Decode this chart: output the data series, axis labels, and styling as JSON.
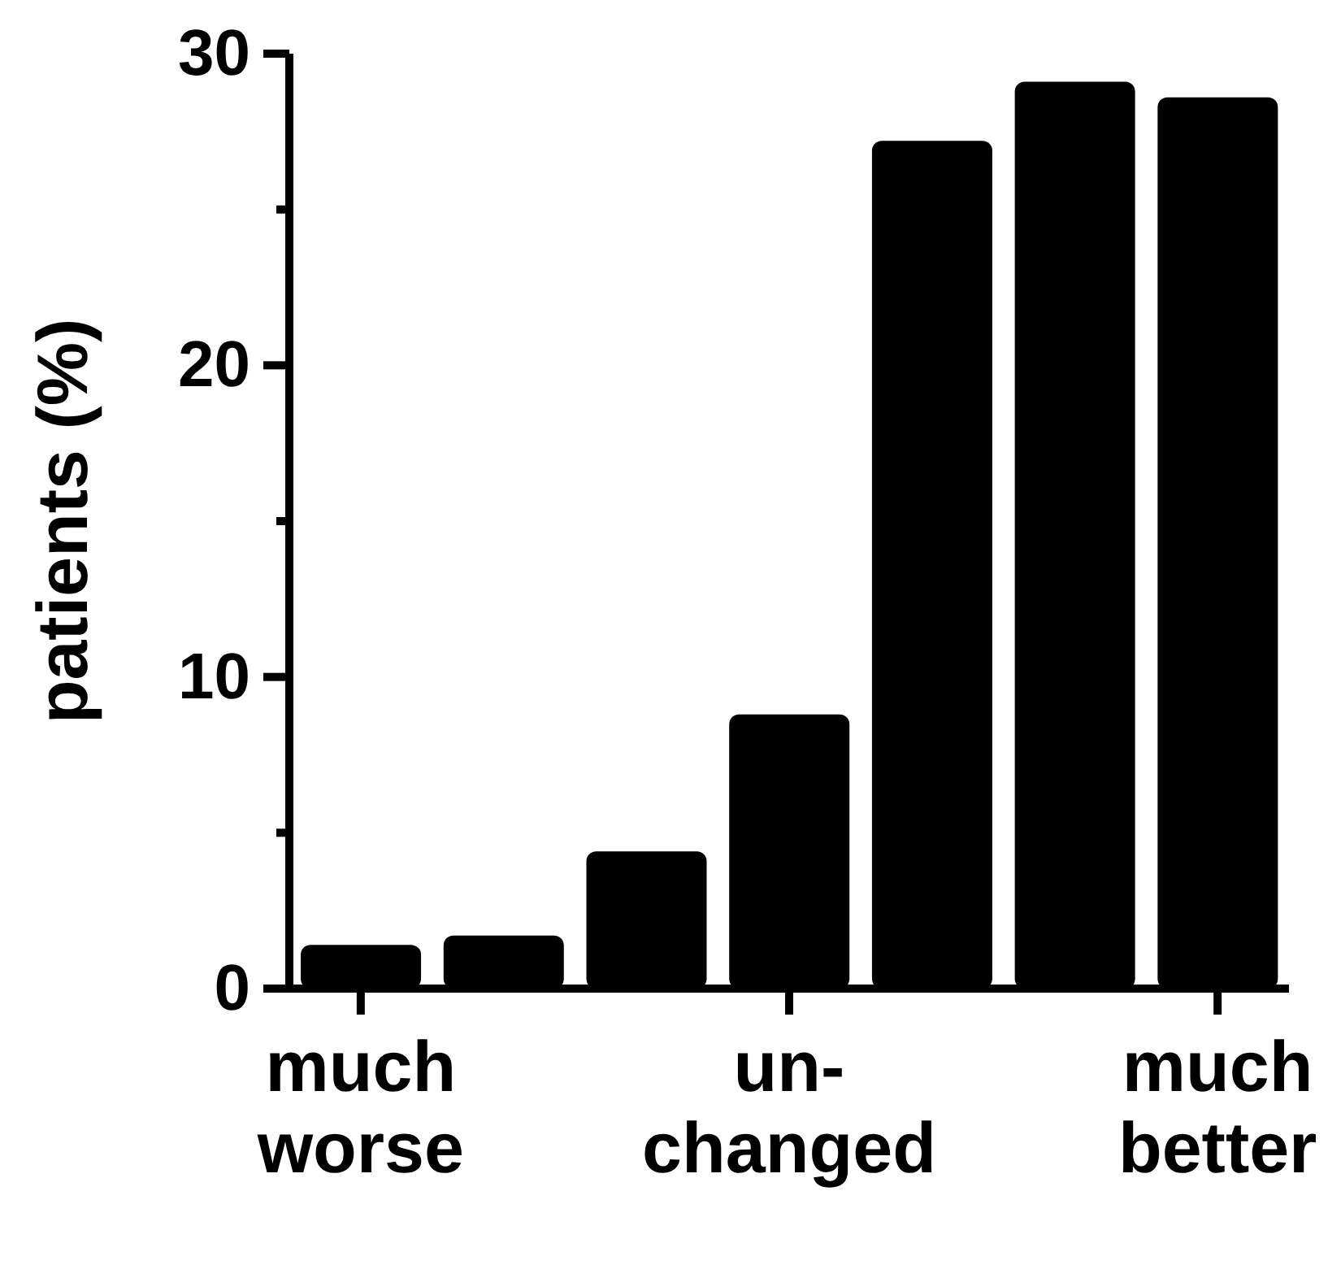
{
  "chart_data": {
    "type": "bar",
    "ylabel": "patients (%)",
    "categories": [
      "much\nworse",
      null,
      null,
      "un-\nchanged",
      null,
      null,
      "much\nbetter"
    ],
    "values": [
      1.4,
      1.7,
      4.4,
      8.8,
      27.2,
      29.1,
      28.6
    ],
    "color": "#000000",
    "ylim": [
      0,
      30
    ],
    "yticks": [
      0,
      {
        "value": 5,
        "label": null
      },
      10,
      {
        "value": 15,
        "label": null
      },
      20,
      {
        "value": 25,
        "label": null
      },
      30
    ],
    "grid": false,
    "legend": false
  }
}
